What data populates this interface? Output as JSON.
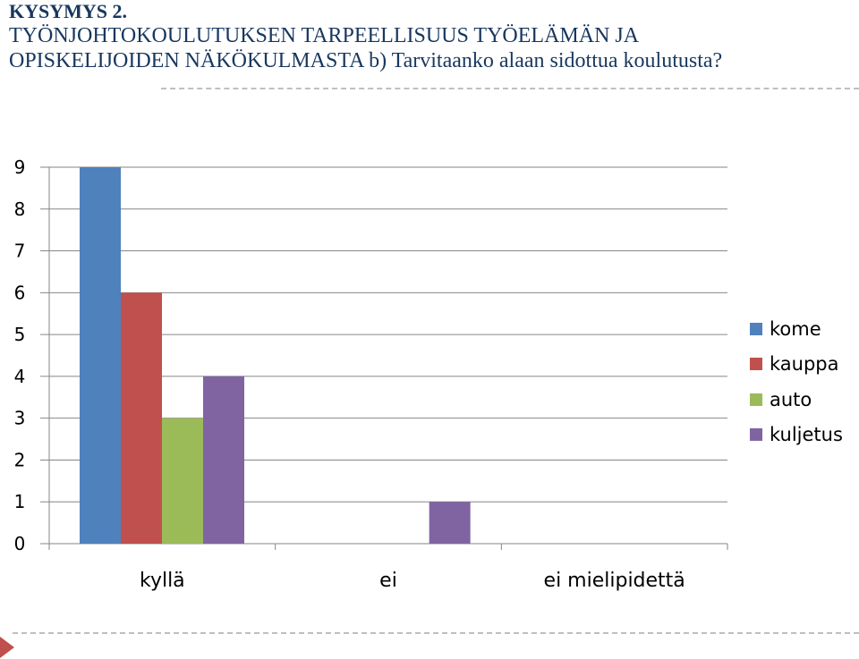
{
  "header": {
    "kysymys": "KYSYMYS 2.",
    "title_line1": "TYÖNJOHTOKOULUTUKSEN TARPEELLISUUS TYÖELÄMÄN JA",
    "title_line2": "OPISKELIJOIDEN NÄKÖKULMASTA b) Tarvitaanko alaan sidottua koulutusta?"
  },
  "chart_data": {
    "type": "bar",
    "categories": [
      "kyllä",
      "ei",
      "ei mielipidettä"
    ],
    "series": [
      {
        "name": "kome",
        "values": [
          9,
          0,
          0
        ],
        "color": "#4f81bd"
      },
      {
        "name": "kauppa",
        "values": [
          6,
          0,
          0
        ],
        "color": "#c0504d"
      },
      {
        "name": "auto",
        "values": [
          3,
          0,
          0
        ],
        "color": "#9bbb59"
      },
      {
        "name": "kuljetus",
        "values": [
          4,
          1,
          0
        ],
        "color": "#8064a2"
      }
    ],
    "yticks": [
      "0",
      "1",
      "2",
      "3",
      "4",
      "5",
      "6",
      "7",
      "8",
      "9"
    ],
    "ylim": [
      0,
      9
    ],
    "grid": true,
    "legend_position": "right"
  }
}
